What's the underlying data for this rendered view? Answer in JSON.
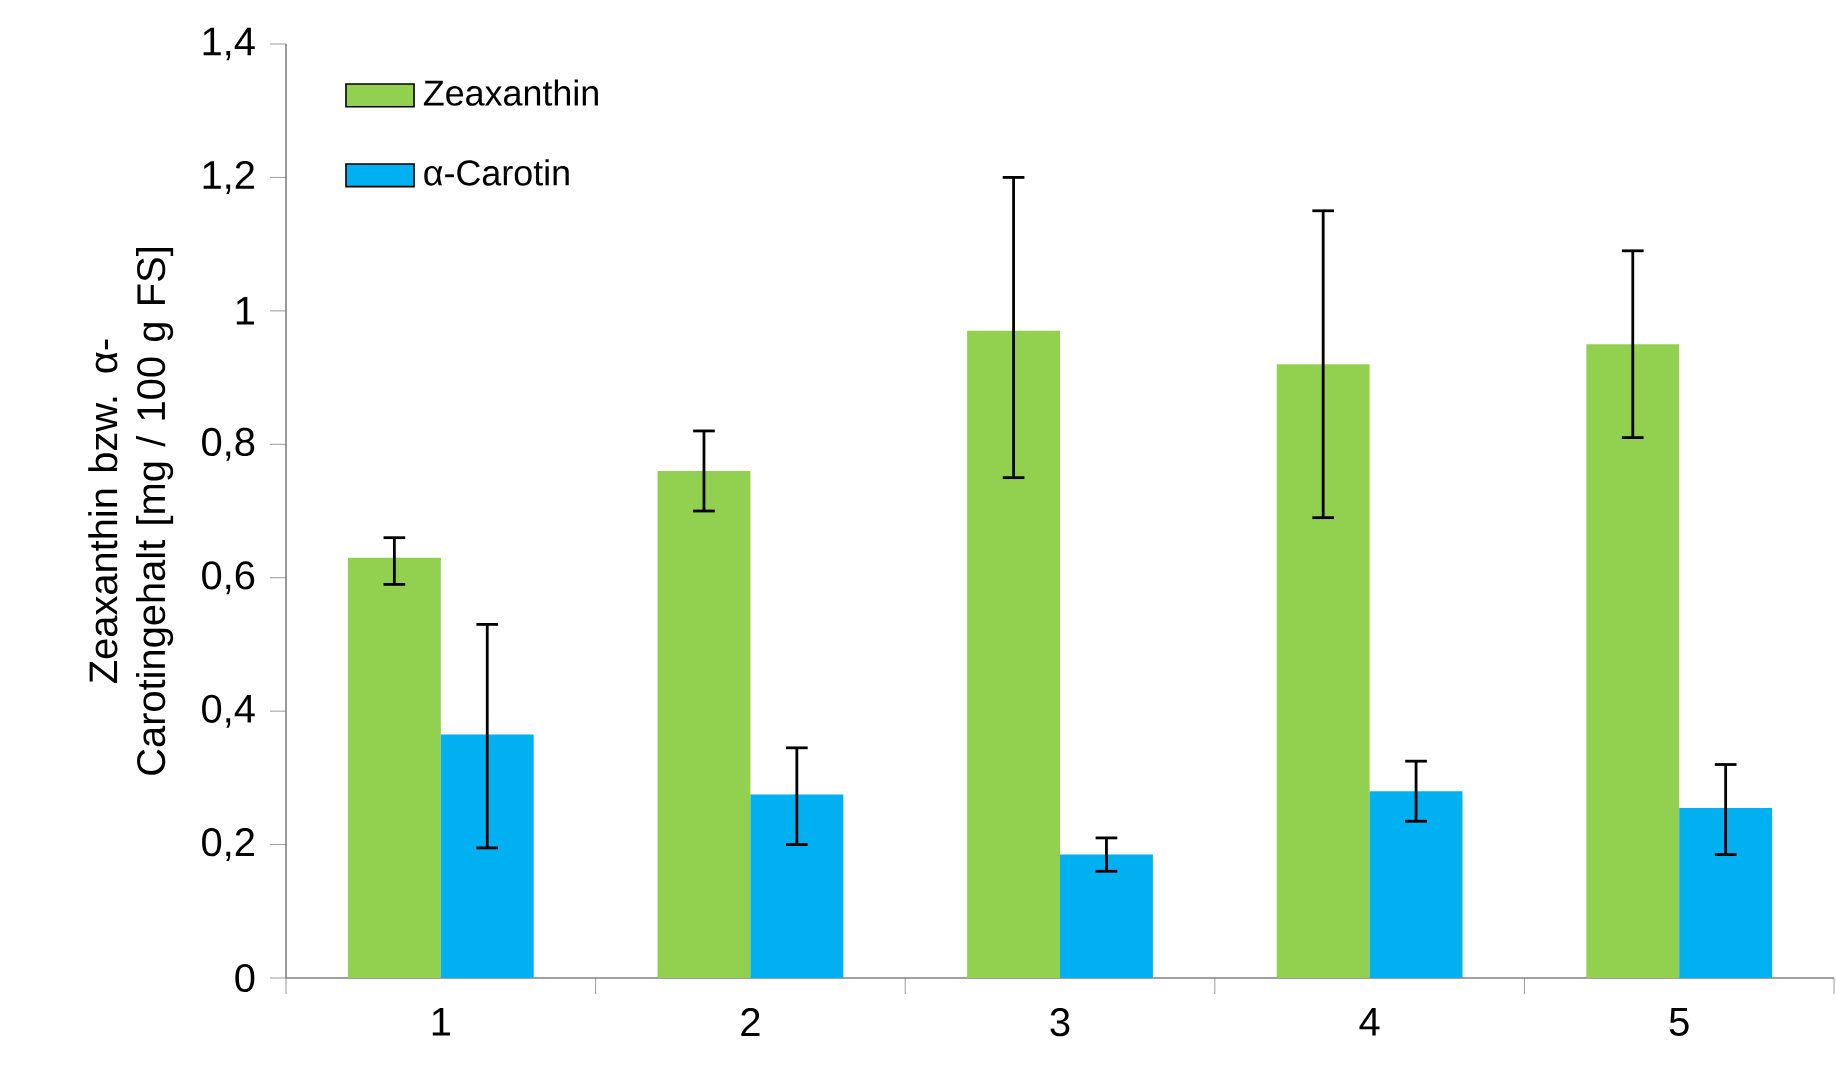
{
  "chart_data": {
    "type": "bar",
    "ylabel": "Zeaxanthin bzw. α-Carotingehalt [mg / 100 g FS]",
    "categories": [
      "1",
      "2",
      "3",
      "4",
      "5"
    ],
    "series": [
      {
        "name": "Zeaxanthin",
        "color": "#92d050",
        "values": [
          0.63,
          0.76,
          0.97,
          0.92,
          0.95
        ],
        "errors": [
          [
            0.59,
            0.66
          ],
          [
            0.7,
            0.82
          ],
          [
            0.75,
            1.2
          ],
          [
            0.69,
            1.15
          ],
          [
            0.81,
            1.09
          ]
        ]
      },
      {
        "name": "α-Carotin",
        "color": "#00b0f0",
        "values": [
          0.365,
          0.275,
          0.185,
          0.28,
          0.255
        ],
        "errors": [
          [
            0.195,
            0.53
          ],
          [
            0.2,
            0.345
          ],
          [
            0.16,
            0.21
          ],
          [
            0.235,
            0.325
          ],
          [
            0.185,
            0.32
          ]
        ]
      }
    ],
    "ylim": [
      0,
      1.4
    ],
    "yticks": [
      0,
      {
        "value": 0.2,
        "label": "0,2"
      },
      {
        "value": 0.4,
        "label": "0,4"
      },
      {
        "value": 0.6,
        "label": "0,6"
      },
      {
        "value": 0.8,
        "label": "0,8"
      },
      1,
      {
        "value": 1.2,
        "label": "1,2"
      },
      {
        "value": 1.4,
        "label": "1,4"
      }
    ],
    "grid": false,
    "legend": "top left"
  }
}
